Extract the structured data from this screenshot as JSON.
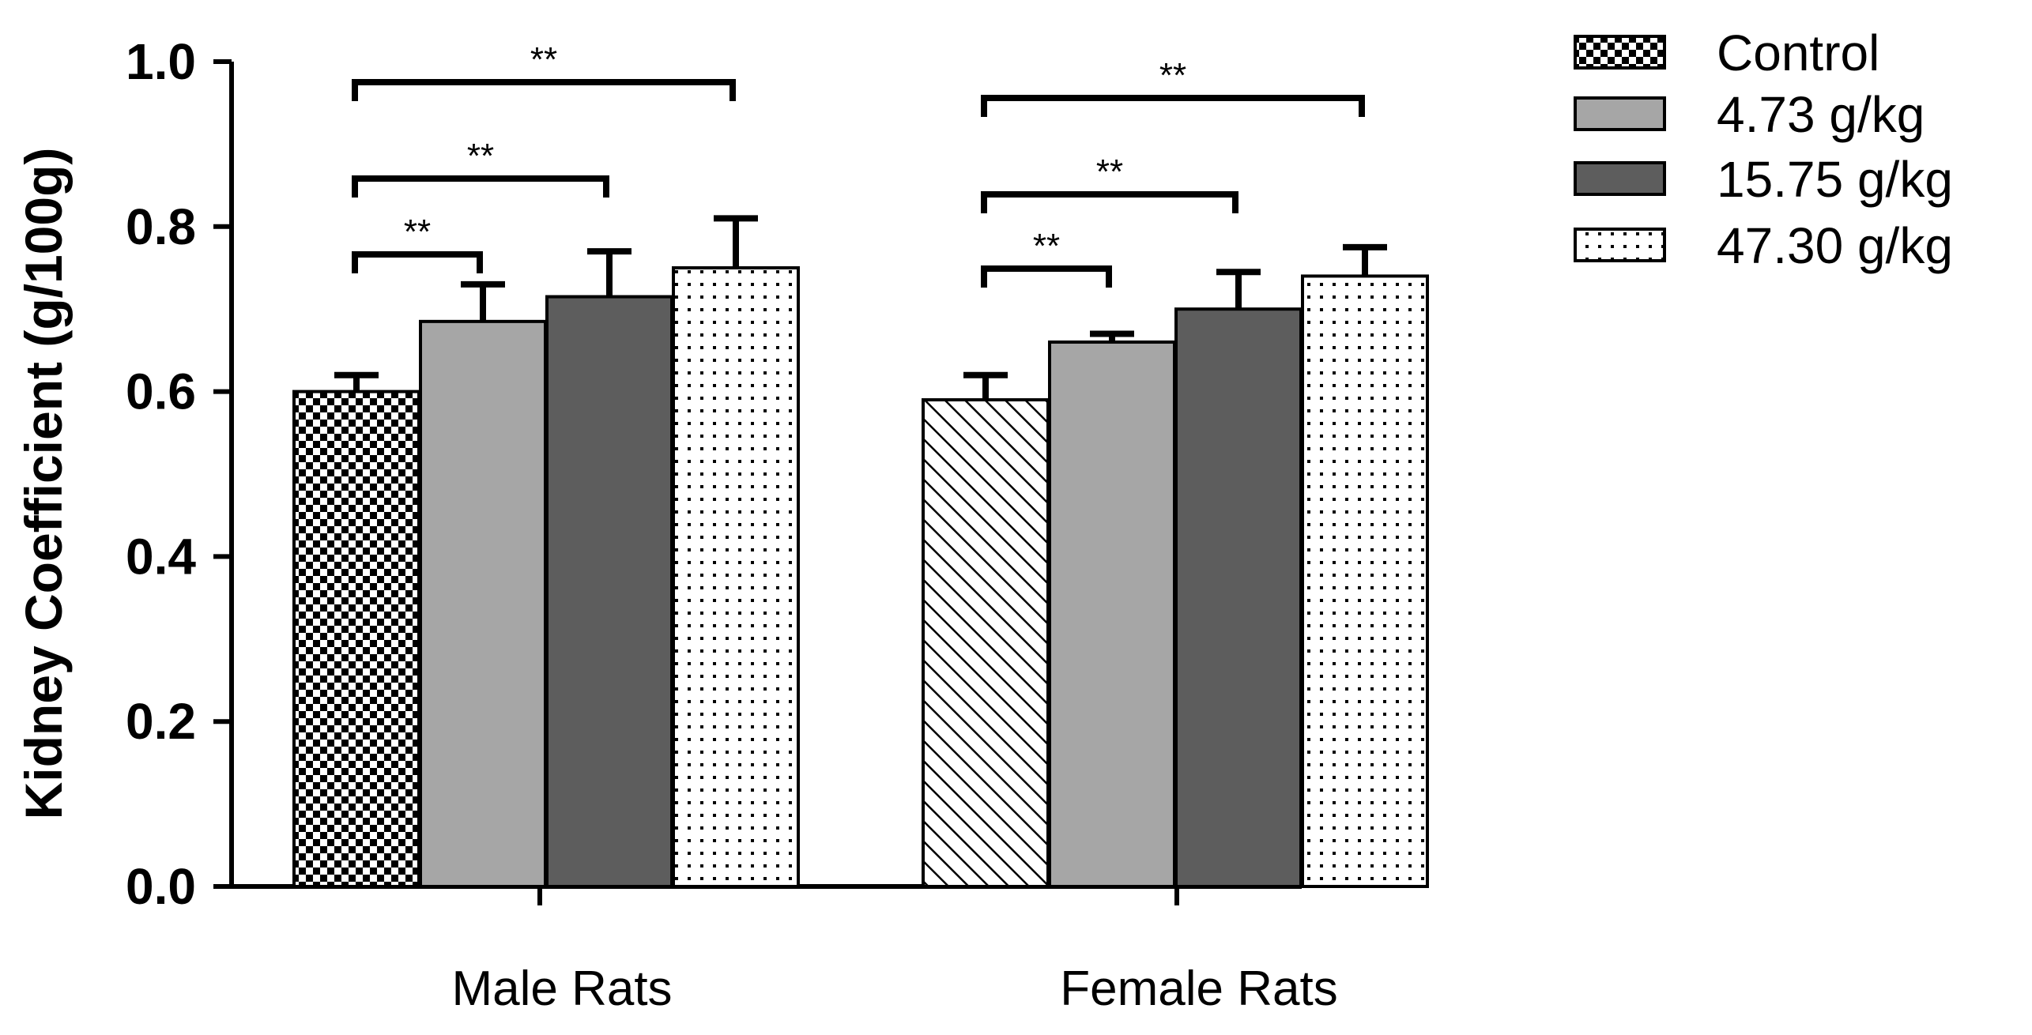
{
  "chart_data": {
    "type": "bar",
    "title": "",
    "xlabel": "",
    "ylabel": "Kidney Coefficient (g/100g)",
    "ylim": [
      0,
      1.0
    ],
    "yticks": [
      0.0,
      0.2,
      0.4,
      0.6,
      0.8,
      1.0
    ],
    "ytick_labels": [
      "0.0",
      "0.2",
      "0.4",
      "0.6",
      "0.8",
      "1.0"
    ],
    "grid": false,
    "legend_position": "top-right",
    "categories": [
      "Male Rats",
      "Female Rats"
    ],
    "series": [
      {
        "name": "Control",
        "values": [
          0.6,
          0.59
        ],
        "errors": [
          0.02,
          0.03
        ]
      },
      {
        "name": "4.73 g/kg",
        "values": [
          0.685,
          0.66
        ],
        "errors": [
          0.045,
          0.01
        ]
      },
      {
        "name": "15.75 g/kg",
        "values": [
          0.715,
          0.7
        ],
        "errors": [
          0.055,
          0.045
        ]
      },
      {
        "name": "47.30 g/kg",
        "values": [
          0.75,
          0.74
        ],
        "errors": [
          0.06,
          0.035
        ]
      }
    ],
    "significance": [
      {
        "category": 0,
        "from_series": 0,
        "to_series": 1,
        "label": "**"
      },
      {
        "category": 0,
        "from_series": 0,
        "to_series": 2,
        "label": "**"
      },
      {
        "category": 0,
        "from_series": 0,
        "to_series": 3,
        "label": "**"
      },
      {
        "category": 1,
        "from_series": 0,
        "to_series": 1,
        "label": "**"
      },
      {
        "category": 1,
        "from_series": 0,
        "to_series": 2,
        "label": "**"
      },
      {
        "category": 1,
        "from_series": 0,
        "to_series": 3,
        "label": "**"
      }
    ]
  },
  "colors": {
    "axis": "#000000",
    "light_gray": "#a6a6a6",
    "dark_gray": "#5d5d5d",
    "white": "#ffffff"
  }
}
